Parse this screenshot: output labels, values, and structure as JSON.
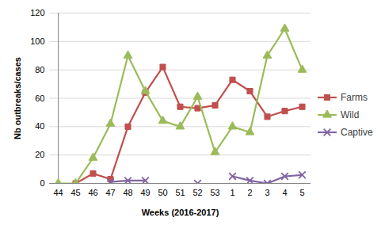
{
  "chart_data": {
    "type": "line",
    "x_label": "Weeks (2016-2017)",
    "y_label": "Nb outbreaks/cases",
    "categories": [
      "44",
      "45",
      "46",
      "47",
      "48",
      "49",
      "50",
      "51",
      "52",
      "53",
      "1",
      "2",
      "3",
      "4",
      "5"
    ],
    "ylim": [
      0,
      120
    ],
    "yticks": [
      0,
      20,
      40,
      60,
      80,
      100,
      120
    ],
    "grid": true,
    "legend": "right",
    "series": [
      {
        "name": "Farms",
        "color": "#c0504d",
        "marker": "square",
        "values": [
          null,
          0,
          7,
          3,
          40,
          64,
          82,
          54,
          53,
          55,
          73,
          65,
          47,
          51,
          54
        ]
      },
      {
        "name": "Wild",
        "color": "#9bbb59",
        "marker": "triangle",
        "values": [
          0,
          0,
          18,
          42,
          90,
          65,
          44,
          40,
          61,
          22,
          40,
          36,
          90,
          109,
          80
        ]
      },
      {
        "name": "Captive",
        "color": "#8064a2",
        "marker": "x",
        "values": [
          null,
          null,
          null,
          1,
          2,
          2,
          null,
          null,
          0,
          null,
          5,
          2,
          0,
          5,
          6
        ]
      }
    ]
  }
}
